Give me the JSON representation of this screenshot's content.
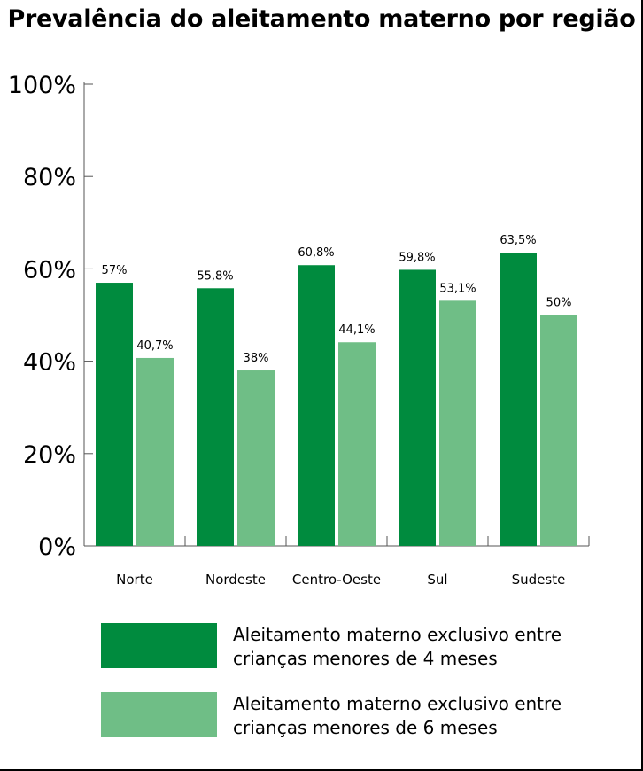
{
  "title": "Prevalência do aleitamento materno por região",
  "chart_data": {
    "type": "bar",
    "title": "Prevalência do aleitamento materno por região",
    "categories": [
      "Norte",
      "Nordeste",
      "Centro-Oeste",
      "Sul",
      "Sudeste"
    ],
    "series": [
      {
        "name": "Aleitamento materno exclusivo entre crianças menores de 4 meses",
        "values": [
          57,
          55.8,
          60.8,
          59.8,
          63.5
        ],
        "labels": [
          "57%",
          "55,8%",
          "60,8%",
          "59,8%",
          "63,5%"
        ],
        "color": "#008B3E"
      },
      {
        "name": "Aleitamento materno exclusivo entre crianças menores de 6 meses",
        "values": [
          40.7,
          38,
          44.1,
          53.1,
          50
        ],
        "labels": [
          "40,7%",
          "38%",
          "44,1%",
          "53,1%",
          "50%"
        ],
        "color": "#6FBE86"
      }
    ],
    "yticks": [
      "0%",
      "20%",
      "40%",
      "60%",
      "80%",
      "100%"
    ],
    "ylim": [
      0,
      100
    ],
    "xlabel": "",
    "ylabel": "",
    "grid": false,
    "legend": "bottom"
  },
  "legend": {
    "items": [
      {
        "line1": "Aleitamento materno exclusivo entre",
        "line2": "crianças menores de 4 meses",
        "color": "#008B3E"
      },
      {
        "line1": "Aleitamento materno exclusivo entre",
        "line2": "crianças menores de 6 meses",
        "color": "#6FBE86"
      }
    ]
  }
}
